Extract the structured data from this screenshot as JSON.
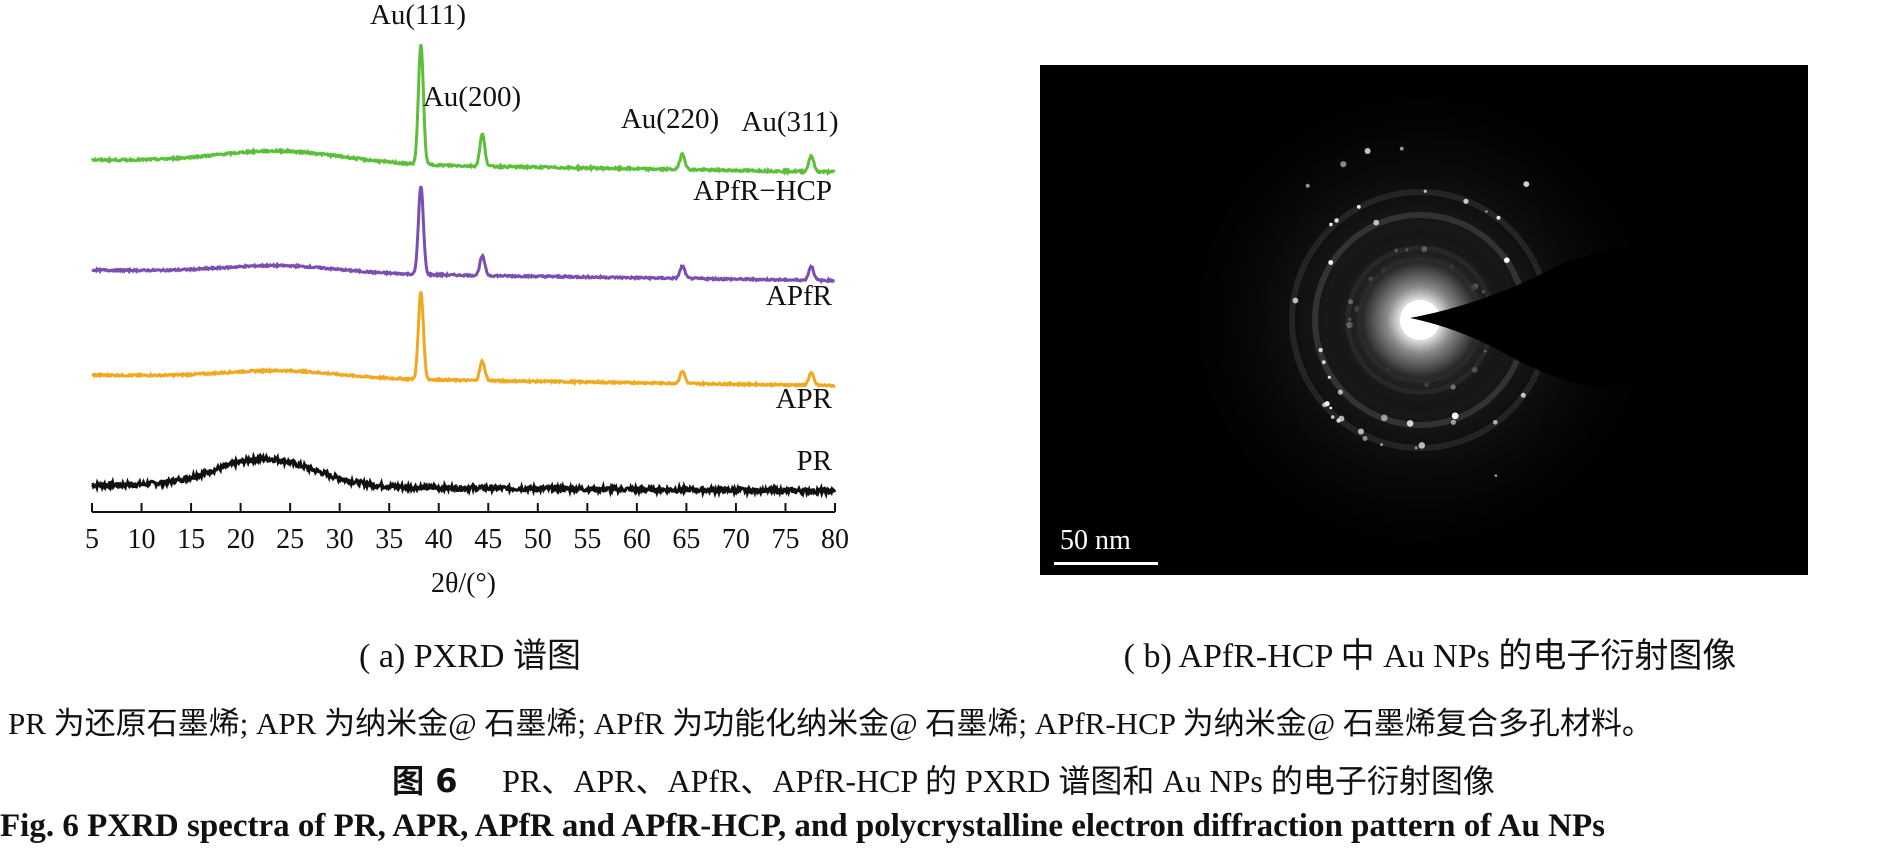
{
  "chart_data": {
    "type": "line",
    "xlabel": "2θ/(°)",
    "xlim": [
      5,
      80
    ],
    "x_ticks": [
      5,
      10,
      15,
      20,
      25,
      30,
      35,
      40,
      45,
      50,
      55,
      60,
      65,
      70,
      75,
      80
    ],
    "series": [
      {
        "name": "PR",
        "color": "#111111",
        "peaks": [],
        "broad": [
          {
            "center": 22.5,
            "height": 0.55,
            "width": 7
          }
        ],
        "noise": true
      },
      {
        "name": "APR",
        "color": "#f0a81e",
        "peaks": [
          {
            "pos": 38.2,
            "h": 1.0
          },
          {
            "pos": 44.4,
            "h": 0.22
          },
          {
            "pos": 64.6,
            "h": 0.14
          },
          {
            "pos": 77.6,
            "h": 0.14
          }
        ],
        "broad": [
          {
            "center": 24,
            "height": 0.08,
            "width": 8
          }
        ],
        "noise": false
      },
      {
        "name": "APfR",
        "color": "#7a4fb0",
        "peaks": [
          {
            "pos": 38.2,
            "h": 1.0
          },
          {
            "pos": 44.4,
            "h": 0.22
          },
          {
            "pos": 64.6,
            "h": 0.14
          },
          {
            "pos": 77.6,
            "h": 0.16
          }
        ],
        "broad": [
          {
            "center": 24,
            "height": 0.08,
            "width": 8
          }
        ],
        "noise": false
      },
      {
        "name": "APfR−HCP",
        "color": "#5bbf3a",
        "peaks": [
          {
            "pos": 38.2,
            "h": 1.2
          },
          {
            "pos": 44.4,
            "h": 0.32
          },
          {
            "pos": 64.6,
            "h": 0.16
          },
          {
            "pos": 77.6,
            "h": 0.16
          }
        ],
        "broad": [
          {
            "center": 24,
            "height": 0.12,
            "width": 9
          }
        ],
        "noise": false
      }
    ],
    "annotations": [
      {
        "text": "Au(111)",
        "x": 38.2
      },
      {
        "text": "Au(200)",
        "x": 44.4
      },
      {
        "text": "Au(220)",
        "x": 64.6
      },
      {
        "text": "Au(311)",
        "x": 77.6
      }
    ]
  },
  "tem_image": {
    "scale_label": "50 nm"
  },
  "captions": {
    "a": "( a) PXRD 谱图",
    "b": "( b) APfR-HCP 中 Au NPs 的电子衍射图像"
  },
  "note": "PR 为还原石墨烯; APR 为纳米金@ 石墨烯; APfR 为功能化纳米金@ 石墨烯; APfR-HCP 为纳米金@ 石墨烯复合多孔材料。",
  "figure_title_cn": {
    "label": "图 6",
    "text": "PR、APR、APfR、APfR-HCP 的 PXRD 谱图和 Au NPs 的电子衍射图像"
  },
  "figure_title_en": "Fig. 6   PXRD spectra of PR, APR, APfR and APfR-HCP, and polycrystalline electron diffraction pattern of Au NPs"
}
